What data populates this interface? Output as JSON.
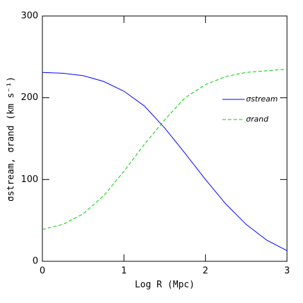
{
  "chart_data": {
    "type": "line",
    "x_label": "Log R  (Mpc)",
    "y_label": "σstream, σrand (km s⁻¹)",
    "x": [
      0,
      0.25,
      0.5,
      0.75,
      1,
      1.25,
      1.5,
      1.75,
      2,
      2.25,
      2.5,
      2.75,
      3
    ],
    "series": [
      {
        "name": "σstream",
        "color": "#0000ff",
        "dash": false,
        "values": [
          231,
          230,
          227,
          220,
          208,
          190,
          163,
          132,
          100,
          70,
          45,
          26,
          13
        ]
      },
      {
        "name": "σrand",
        "color": "#00cc00",
        "dash": true,
        "values": [
          39,
          45,
          58,
          80,
          110,
          143,
          173,
          200,
          216,
          226,
          231,
          233,
          235
        ]
      }
    ],
    "xlim": [
      0,
      3
    ],
    "xticks": [
      0,
      1,
      2,
      3
    ],
    "ylim": [
      0,
      300
    ],
    "yticks": [
      0,
      100,
      200,
      300
    ],
    "legend": "upper right"
  }
}
